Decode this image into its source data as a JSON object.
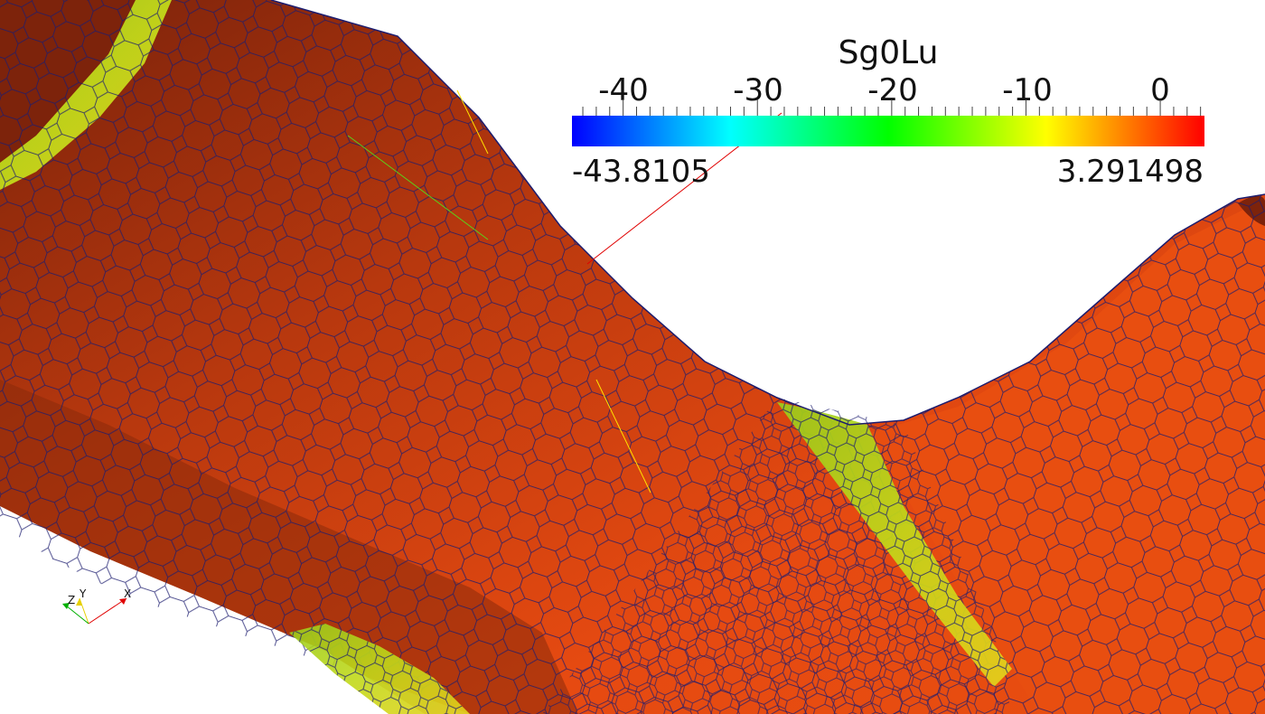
{
  "legend": {
    "title": "Sg0Lu",
    "range_min": "-43.8105",
    "range_max": "3.291498",
    "min_value": -43.8105,
    "max_value": 3.291498,
    "major_ticks": [
      {
        "label": "-40",
        "value": -40
      },
      {
        "label": "-30",
        "value": -30
      },
      {
        "label": "-20",
        "value": -20
      },
      {
        "label": "-10",
        "value": -10
      },
      {
        "label": "0",
        "value": 0
      }
    ],
    "colormap": [
      "#0000ff",
      "#00ffff",
      "#00ff00",
      "#ffff00",
      "#ff0000"
    ]
  },
  "axes": {
    "x_label": "X",
    "y_label": "Y",
    "z_label": "Z"
  },
  "colors": {
    "surface": "#e84e10",
    "surface_dark": "#9a2a0c",
    "mesh_edges": "#1c1c6e",
    "highlight_green": "#b7d21a",
    "highlight_yellow": "#e7d81c"
  }
}
